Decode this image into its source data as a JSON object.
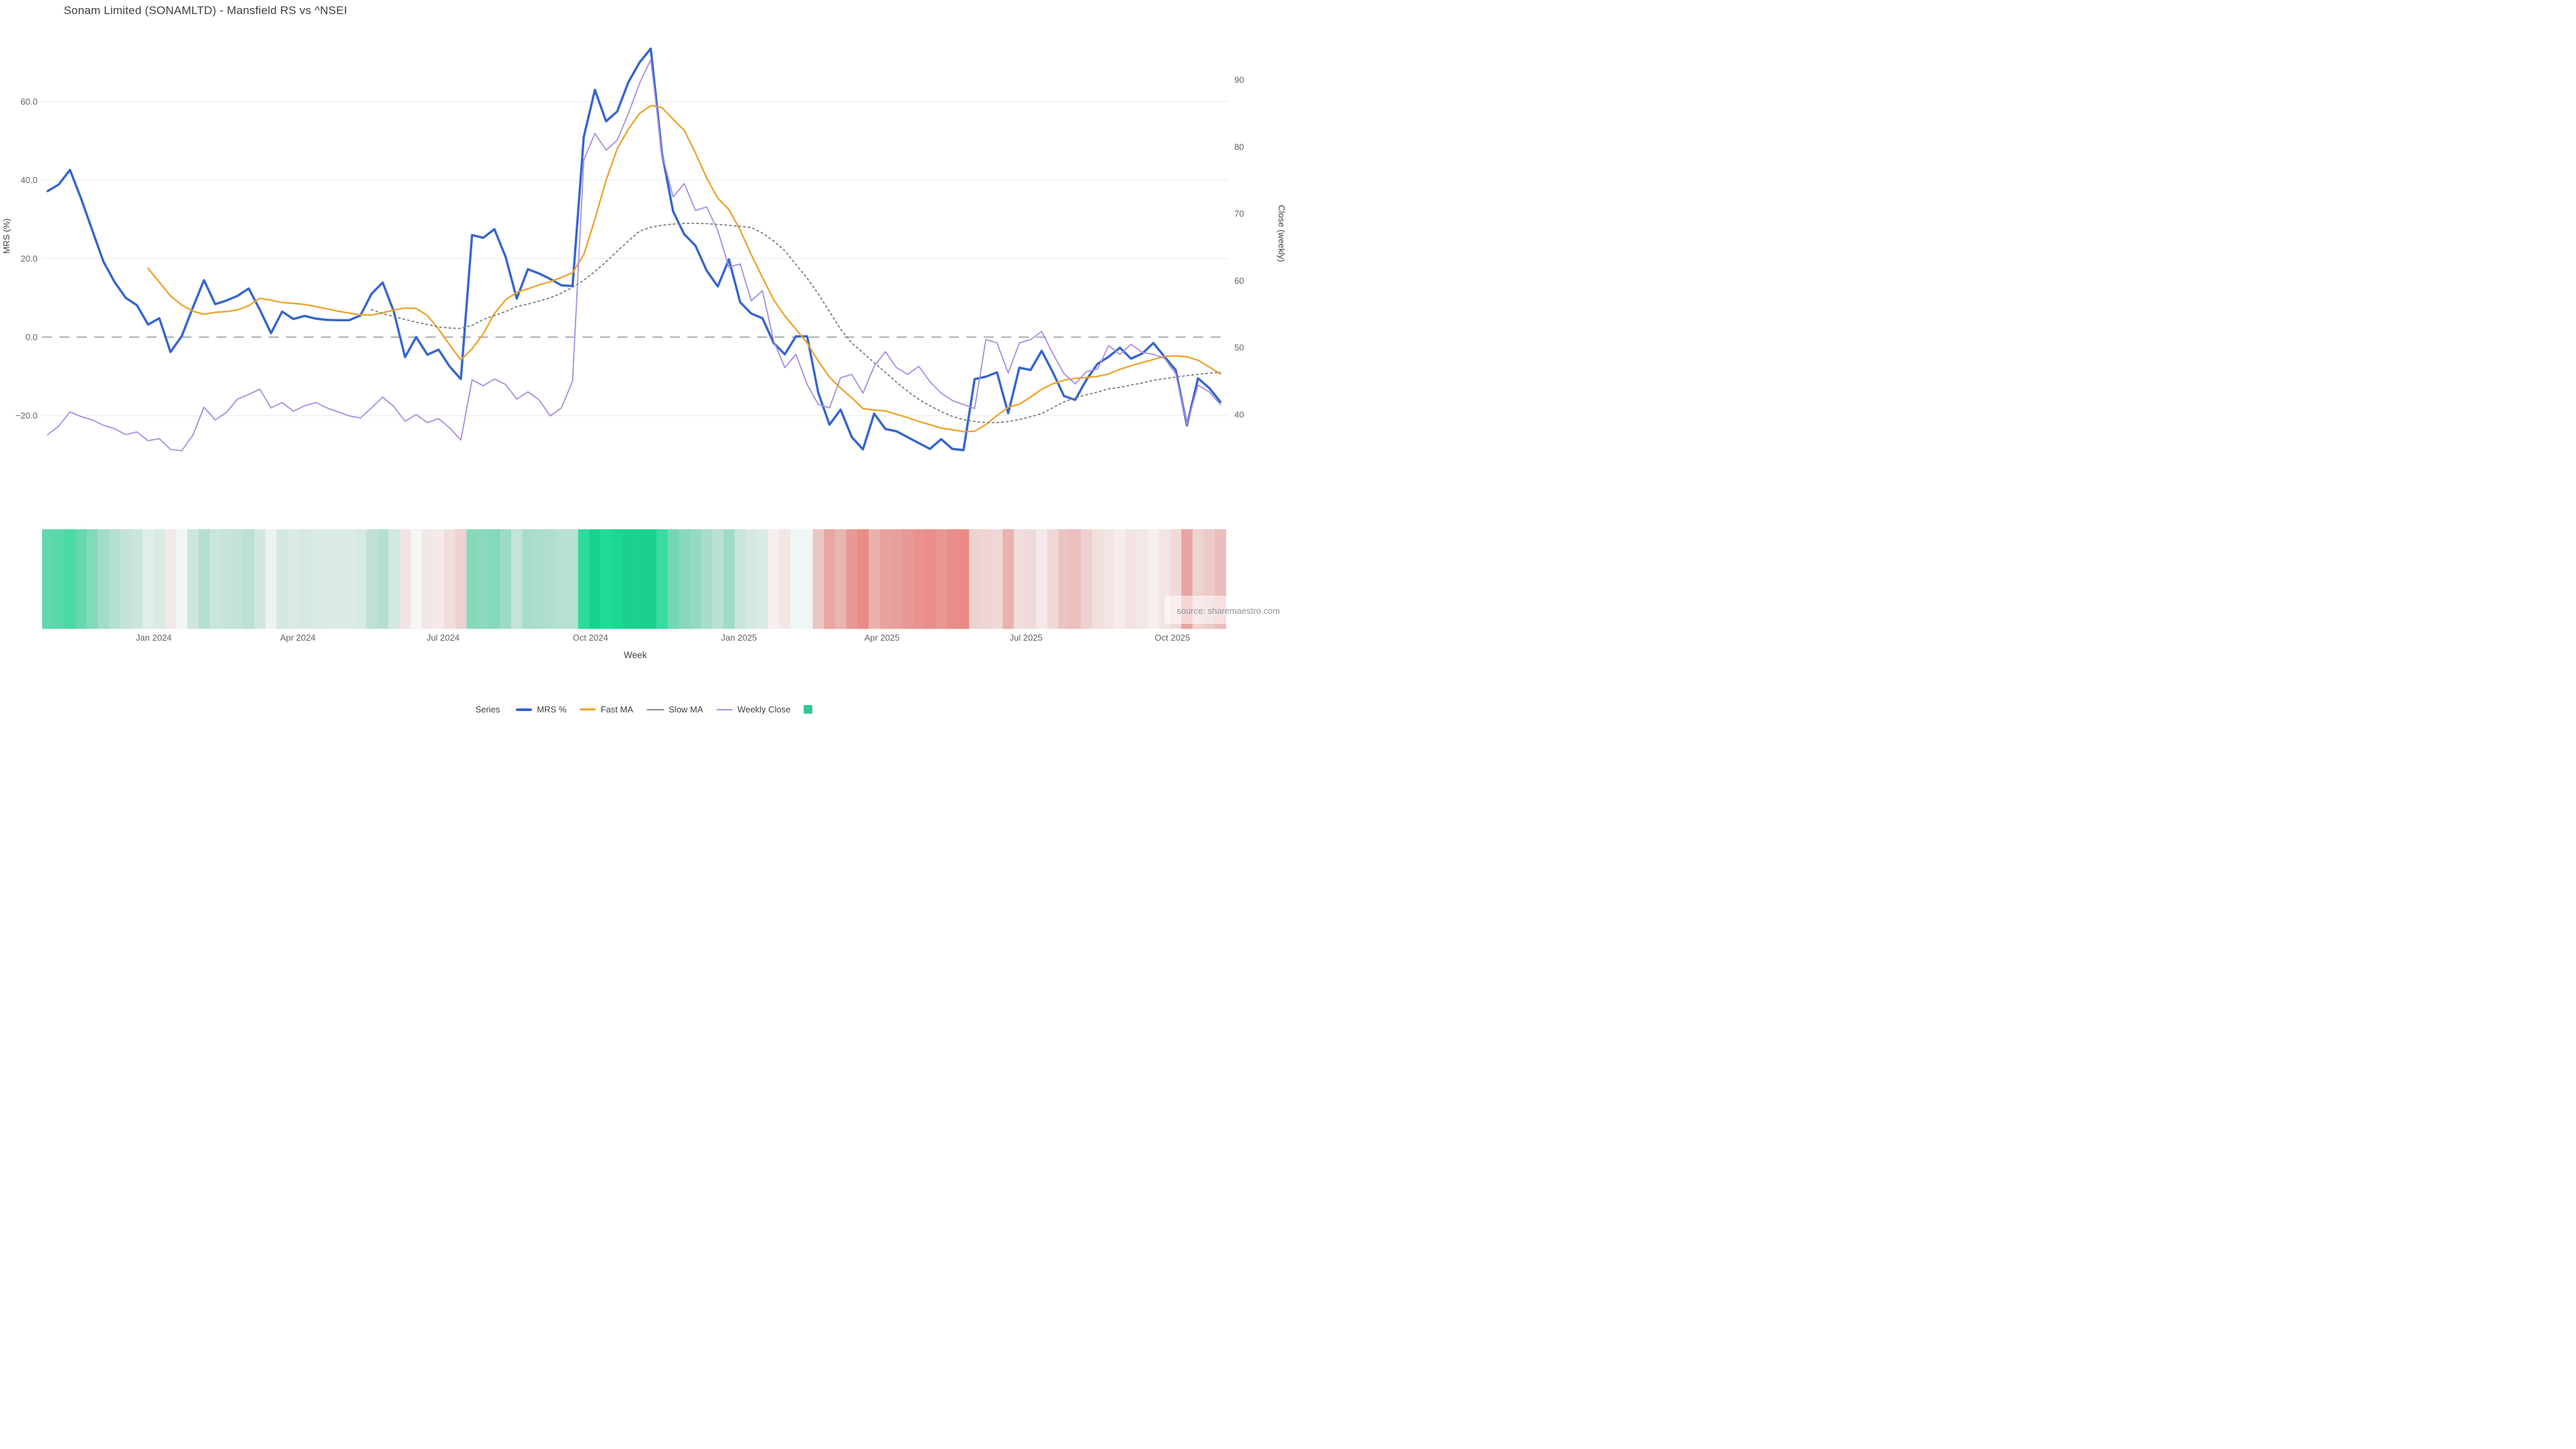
{
  "title": "Sonam Limited (SONAMLTD) - Mansfield RS vs ^NSEI",
  "source_note": "source: sharemaestro.com",
  "axes": {
    "y_left": {
      "title": "MRS (%)",
      "tick_labels": [
        "60.0",
        "40.0",
        "20.0",
        "0.0",
        "−20.0"
      ],
      "tick_values": [
        60,
        40,
        20,
        0,
        -20
      ],
      "range_hint": [
        -32,
        75
      ]
    },
    "y_right": {
      "title": "Close (weekly)",
      "tick_labels": [
        "90",
        "80",
        "70",
        "60",
        "50",
        "40"
      ],
      "tick_values": [
        90,
        80,
        70,
        60,
        50,
        40
      ]
    },
    "x": {
      "title": "Week",
      "tick_labels": [
        "Jan 2024",
        "Apr 2024",
        "Jul 2024",
        "Oct 2024",
        "Jan 2025",
        "Apr 2025",
        "Jul 2025",
        "Oct 2025"
      ],
      "tick_week_positions": [
        9.5,
        22.4,
        35.4,
        48.6,
        61.9,
        74.7,
        87.6,
        100.7
      ]
    }
  },
  "legend": {
    "title": "Series",
    "items": [
      {
        "label": "MRS %",
        "swatch": "line-blue"
      },
      {
        "label": "Fast MA",
        "swatch": "line-orange"
      },
      {
        "label": "Slow MA",
        "swatch": "line-dotted-gray"
      },
      {
        "label": "Weekly Close",
        "swatch": "line-purple"
      },
      {
        "label": "",
        "swatch": "square-green"
      }
    ]
  },
  "colors": {
    "mrs": "#3565cd",
    "fast_ma": "#eba32a",
    "slow_ma": "#7b7b7b",
    "weekly_close": "#a88ce0",
    "zero_dash": "#9aa0a8",
    "gridline": "#eef0f5",
    "title_text": "#3c4043",
    "tick_text": "#5f6368",
    "source_text": "#8d949b",
    "legend_square": "#35c796",
    "heatmap_positive_max": "#1ac289",
    "heatmap_negative_max": "#e87d76"
  },
  "chart_data": {
    "type": "line",
    "x_unit": "weekly (106 weeks, ~Oct 2023 – Oct 2025)",
    "n_points": 106,
    "title": "Sonam Limited (SONAMLTD) - Mansfield RS vs ^NSEI",
    "xlabel": "Week",
    "ylabel_left": "MRS (%)",
    "ylabel_right": "Close (weekly)",
    "ylim_left": [
      -32,
      76
    ],
    "ylim_right": [
      33,
      96
    ],
    "grid": "horizontal, left-axis ticks only; dashed gray line at MRS 0",
    "legend_position": "bottom-center",
    "series": [
      {
        "name": "MRS %",
        "axis": "left",
        "style": "solid-thick",
        "color": "#3565cd",
        "values": [
          37.2,
          38.9,
          42.6,
          35.3,
          27.2,
          19.2,
          14,
          10,
          8.1,
          3.2,
          4.8,
          -3.8,
          0.2,
          7.5,
          14.5,
          8.4,
          9.3,
          10.5,
          12.4,
          7,
          1,
          6.5,
          4.6,
          5.4,
          4.7,
          4.4,
          4.3,
          4.3,
          5.5,
          11,
          13.9,
          6.5,
          -5.1,
          0,
          -4.5,
          -3.2,
          -7.5,
          -10.7,
          26,
          25.3,
          27.5,
          20.5,
          9.8,
          17.3,
          16.2,
          14.8,
          13.2,
          13,
          51,
          63,
          55,
          57.5,
          65,
          70,
          73.5,
          47,
          32,
          26.2,
          23.3,
          17,
          12.9,
          19.8,
          8.9,
          6,
          4.8,
          -1.5,
          -4.4,
          0.2,
          0.2,
          -14.2,
          -22.3,
          -18.5,
          -25.5,
          -28.6,
          -19.5,
          -23.4,
          -24,
          -25.5,
          -27,
          -28.5,
          -26,
          -28.5,
          -28.8,
          -10.7,
          -10.1,
          -9,
          -19.4,
          -7.8,
          -8.4,
          -3.5,
          -9,
          -15,
          -16,
          -10.9,
          -6.8,
          -5,
          -2.7,
          -5.5,
          -4.2,
          -1.5,
          -5,
          -8.4,
          -22.5,
          -10.5,
          -13,
          -16.5
        ]
      },
      {
        "name": "Fast MA",
        "axis": "left",
        "style": "solid",
        "color": "#eba32a",
        "values": [
          null,
          null,
          null,
          null,
          null,
          null,
          null,
          null,
          null,
          17.5,
          14,
          10.5,
          8.2,
          6.6,
          5.8,
          6.3,
          6.5,
          6.9,
          8,
          9.9,
          9.4,
          8.8,
          8.6,
          8.3,
          7.8,
          7.2,
          6.6,
          6.1,
          5.7,
          5.6,
          6.2,
          6.9,
          7.4,
          7.3,
          5.5,
          2,
          -2,
          -5.8,
          -3,
          0.8,
          6,
          9.5,
          11.4,
          12.3,
          13.3,
          14.1,
          15.2,
          16.4,
          21,
          30,
          40,
          48,
          53,
          57,
          59,
          58.5,
          55.5,
          52.7,
          46.9,
          40.6,
          35.4,
          32.5,
          27.3,
          21,
          15.2,
          9.5,
          5.4,
          2,
          -1.5,
          -6.1,
          -10.2,
          -13,
          -15.5,
          -18.2,
          -18.6,
          -18.8,
          -19.7,
          -20.5,
          -21.5,
          -22.3,
          -23.2,
          -23.6,
          -24.1,
          -24,
          -22.3,
          -20,
          -17.9,
          -17.1,
          -15.3,
          -13.3,
          -11.9,
          -11,
          -10.5,
          -10.3,
          -10,
          -9.4,
          -8.2,
          -7.3,
          -6.5,
          -5.7,
          -4.9,
          -4.8,
          -5,
          -5.9,
          -7.6,
          -9.4
        ]
      },
      {
        "name": "Slow MA",
        "axis": "left",
        "style": "dotted",
        "color": "#7b7b7b",
        "values": [
          null,
          null,
          null,
          null,
          null,
          null,
          null,
          null,
          null,
          null,
          null,
          null,
          null,
          null,
          null,
          null,
          null,
          null,
          null,
          null,
          null,
          null,
          null,
          null,
          null,
          null,
          null,
          null,
          null,
          7,
          6,
          5.2,
          4.5,
          3.8,
          3.2,
          2.6,
          2.3,
          2.2,
          3,
          4.5,
          5.5,
          6.5,
          7.8,
          8.4,
          9.2,
          10,
          11.2,
          12.7,
          14.5,
          16.7,
          19.2,
          21.9,
          24.5,
          27,
          28,
          28.5,
          28.8,
          29,
          29,
          28.9,
          28.7,
          28.5,
          28.2,
          27.9,
          26.5,
          24.5,
          22,
          18.5,
          15,
          11,
          6.5,
          2,
          -1.5,
          -4,
          -6.5,
          -9,
          -11.5,
          -13.8,
          -15.9,
          -17.5,
          -19,
          -20.2,
          -21,
          -21.5,
          -21.8,
          -21.8,
          -21.5,
          -21,
          -20.3,
          -19.5,
          -18,
          -16.5,
          -15.5,
          -14.7,
          -14,
          -13.2,
          -12.8,
          -12.2,
          -11.7,
          -11,
          -10.6,
          -10.2,
          -9.8,
          -9.5,
          -9.2,
          -9
        ]
      },
      {
        "name": "Weekly Close",
        "axis": "right",
        "style": "solid-thin",
        "color": "#a88ce0",
        "values": [
          37,
          38.3,
          40.4,
          39.7,
          39.2,
          38.4,
          37.9,
          37,
          37.4,
          36.1,
          36.4,
          34.8,
          34.6,
          36.9,
          41.1,
          39.2,
          40.3,
          42.3,
          43,
          43.8,
          41,
          41.8,
          40.5,
          41.3,
          41.8,
          41,
          40.4,
          39.8,
          39.5,
          41,
          42.6,
          41.2,
          39,
          40,
          38.8,
          39.4,
          38,
          36.2,
          45.2,
          44.3,
          45.3,
          44.5,
          42.3,
          43.4,
          42.2,
          39.8,
          41,
          45,
          78,
          82,
          79.5,
          81,
          85,
          89.5,
          93,
          79,
          72.5,
          74.5,
          70.5,
          71,
          67.5,
          62,
          62.5,
          57,
          58.5,
          51,
          47,
          49,
          44.5,
          41.5,
          41,
          45.5,
          46,
          43.2,
          47.2,
          49.4,
          47,
          46,
          47.2,
          44.9,
          43.2,
          42.1,
          41.5,
          40.9,
          51.2,
          50.7,
          46.2,
          50.7,
          51.2,
          52.4,
          49.1,
          46.1,
          44.6,
          46.4,
          46.8,
          50.3,
          49,
          50.5,
          49.3,
          49,
          48.4,
          46.1,
          38.5,
          44.4,
          43.4,
          41.5
        ]
      }
    ],
    "heatmap_strip": {
      "derived_from": "MRS %",
      "description": "one vertical band per week under the chart; green intensity for positive MRS, red/pink intensity for negative MRS",
      "positive_max_color": "#1ac289",
      "negative_max_color": "#e87d76"
    },
    "zero_reference_line": {
      "axis": "left",
      "value": 0,
      "style": "dashed",
      "color": "#9aa0a8"
    }
  }
}
